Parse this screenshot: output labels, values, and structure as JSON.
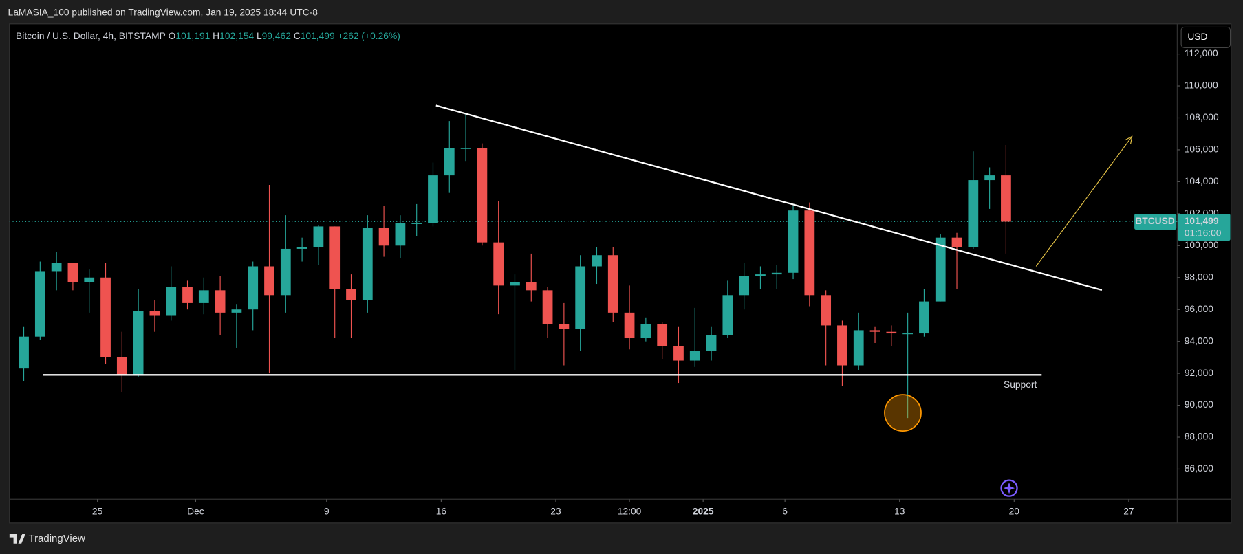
{
  "header": {
    "text": "LaMASIA_100 published on TradingView.com, Jan 19, 2025 18:44 UTC-8"
  },
  "footer": {
    "brand": "TradingView"
  },
  "chart_data": {
    "type": "candlestick",
    "title": "Bitcoin / U.S. Dollar, 4h, BITSTAMP",
    "legend": [
      {
        "label": "O",
        "value": "101,191"
      },
      {
        "label": "H",
        "value": "102,154"
      },
      {
        "label": "L",
        "value": "99,462"
      },
      {
        "label": "C",
        "value": "101,499"
      }
    ],
    "change": "+262 (+0.26%)",
    "currency": "USD",
    "symbol": "BTCUSD",
    "last_price": {
      "value": 101499,
      "label": "101,499"
    },
    "countdown": "01:16:00",
    "up_color": "#26a69a",
    "down_color": "#ef5350",
    "xlim": [
      -5.37,
      65.96
    ],
    "xticks": [
      {
        "value": 0,
        "label": "25"
      },
      {
        "value": 6,
        "label": "Dec"
      },
      {
        "value": 14,
        "label": "9"
      },
      {
        "value": 21,
        "label": "16"
      },
      {
        "value": 28,
        "label": "23"
      },
      {
        "value": 32.5,
        "label": "12:00"
      },
      {
        "value": 37,
        "label": "2025"
      },
      {
        "value": 42,
        "label": "6"
      },
      {
        "value": 49,
        "label": "13"
      },
      {
        "value": 56,
        "label": "20"
      },
      {
        "value": 63,
        "label": "27"
      }
    ],
    "ylim": [
      84115,
      113885
    ],
    "yticks": [
      {
        "value": 86000,
        "label": "86,000"
      },
      {
        "value": 88000,
        "label": "88,000"
      },
      {
        "value": 90000,
        "label": "90,000"
      },
      {
        "value": 92000,
        "label": "92,000"
      },
      {
        "value": 94000,
        "label": "94,000"
      },
      {
        "value": 96000,
        "label": "96,000"
      },
      {
        "value": 98000,
        "label": "98,000"
      },
      {
        "value": 100000,
        "label": "100,000"
      },
      {
        "value": 102000,
        "label": "102,000"
      },
      {
        "value": 104000,
        "label": "104,000"
      },
      {
        "value": 106000,
        "label": "106,000"
      },
      {
        "value": 108000,
        "label": "108,000"
      },
      {
        "value": 110000,
        "label": "110,000"
      },
      {
        "value": 112000,
        "label": "112,000"
      }
    ],
    "x": [
      -4.5,
      -3.5,
      -2.5,
      -1.5,
      -0.5,
      0.5,
      1.5,
      2.5,
      3.5,
      4.5,
      5.5,
      6.5,
      7.5,
      8.5,
      9.5,
      10.5,
      11.5,
      12.5,
      13.5,
      14.5,
      15.5,
      16.5,
      17.5,
      18.5,
      19.5,
      20.5,
      21.5,
      22.5,
      23.5,
      24.5,
      25.5,
      26.5,
      27.5,
      28.5,
      29.5,
      30.5,
      31.5,
      32.5,
      33.5,
      34.5,
      35.5,
      36.5,
      37.5,
      38.5,
      39.5,
      40.5,
      41.5,
      42.5,
      43.5,
      44.5,
      45.5,
      46.5,
      47.5,
      48.5,
      49.5,
      50.5,
      51.5,
      52.5,
      53.5,
      54.5,
      55.5
    ],
    "open": [
      92300,
      94300,
      98400,
      98900,
      97700,
      98000,
      93000,
      91900,
      95900,
      95600,
      97400,
      96400,
      97200,
      95800,
      96000,
      98700,
      96900,
      99800,
      99900,
      101200,
      97300,
      96600,
      101100,
      100000,
      101400,
      101400,
      104400,
      106100,
      106100,
      100200,
      97500,
      97700,
      97200,
      95100,
      94800,
      98700,
      99400,
      95800,
      94200,
      95100,
      93700,
      92800,
      93400,
      94400,
      96900,
      98100,
      98200,
      98300,
      102200,
      96900,
      95000,
      92500,
      94700,
      94600,
      94500,
      94500,
      96500,
      100500,
      99900,
      104100,
      104400
    ],
    "high": [
      94900,
      99000,
      99600,
      98900,
      98500,
      98900,
      94600,
      97300,
      96600,
      98700,
      97800,
      98000,
      98100,
      96300,
      99000,
      103800,
      101900,
      100500,
      101300,
      101200,
      98200,
      101900,
      102500,
      101900,
      102600,
      105200,
      107800,
      108300,
      106400,
      102800,
      98200,
      99500,
      97400,
      96400,
      99400,
      99900,
      99900,
      97500,
      95500,
      95200,
      94900,
      96100,
      94900,
      97800,
      98900,
      98700,
      98800,
      102500,
      102700,
      97200,
      95300,
      95800,
      94900,
      95000,
      95800,
      97300,
      100700,
      100800,
      105900,
      104900,
      106300
    ],
    "low": [
      91500,
      94100,
      97200,
      97200,
      95800,
      92600,
      90800,
      91800,
      94600,
      95300,
      96000,
      95700,
      94400,
      93600,
      94700,
      92000,
      95800,
      99000,
      98800,
      94200,
      94200,
      95800,
      99300,
      99200,
      100600,
      101200,
      103300,
      105300,
      100000,
      95700,
      92200,
      96500,
      94200,
      92500,
      93400,
      97600,
      95200,
      93500,
      94000,
      92900,
      91400,
      92400,
      92800,
      94200,
      96000,
      97300,
      97300,
      97900,
      96200,
      92500,
      91200,
      92200,
      93900,
      93700,
      89200,
      94300,
      96500,
      97300,
      99800,
      102300,
      99500
    ],
    "close": [
      94300,
      98400,
      98900,
      97700,
      98000,
      93000,
      91900,
      95900,
      95600,
      97400,
      96400,
      97200,
      95800,
      96000,
      98700,
      96900,
      99800,
      99900,
      101200,
      97300,
      96600,
      101100,
      100000,
      101400,
      101400,
      104400,
      106100,
      106100,
      100200,
      97500,
      97700,
      97200,
      95100,
      94800,
      98700,
      99400,
      95800,
      94200,
      95100,
      93700,
      92800,
      93400,
      94400,
      96900,
      98100,
      98200,
      98300,
      102200,
      96900,
      95000,
      92500,
      94700,
      94600,
      94500,
      94500,
      96500,
      100500,
      99900,
      104100,
      104400,
      101499
    ],
    "drawings": {
      "trendline": {
        "x": [
          20.68,
          61.36
        ],
        "y": [
          108775,
          97214
        ]
      },
      "support": {
        "x": [
          -3.34,
          57.68
        ],
        "y": [
          91905,
          91905
        ],
        "label": "Support"
      },
      "arrow": {
        "x": [
          57.34,
          63.2
        ],
        "y": [
          98702,
          106839
        ]
      },
      "circle": {
        "x": 49.2,
        "y": 89523
      }
    }
  }
}
